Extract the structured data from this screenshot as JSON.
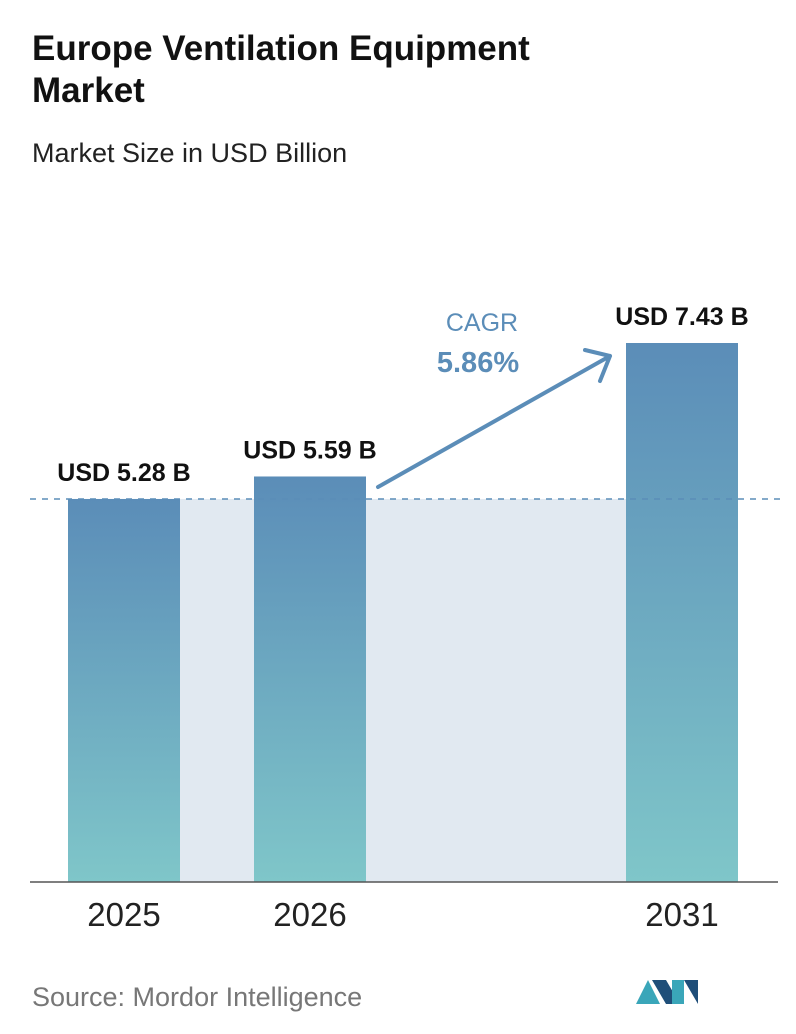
{
  "chart_data": {
    "type": "bar",
    "title": "Europe Ventilation Equipment Market",
    "subtitle": "Market Size in USD Billion",
    "categories": [
      "2025",
      "2026",
      "2031"
    ],
    "values": [
      5.28,
      5.59,
      7.43
    ],
    "value_labels": [
      "USD 5.28 B",
      "USD 5.59 B",
      "USD 7.43 B"
    ],
    "annotation": {
      "label": "CAGR",
      "value": "5.86%"
    },
    "source": "Source:  Mordor Intelligence",
    "color": [
      "#5b8db8",
      "#7fc6c9"
    ]
  }
}
